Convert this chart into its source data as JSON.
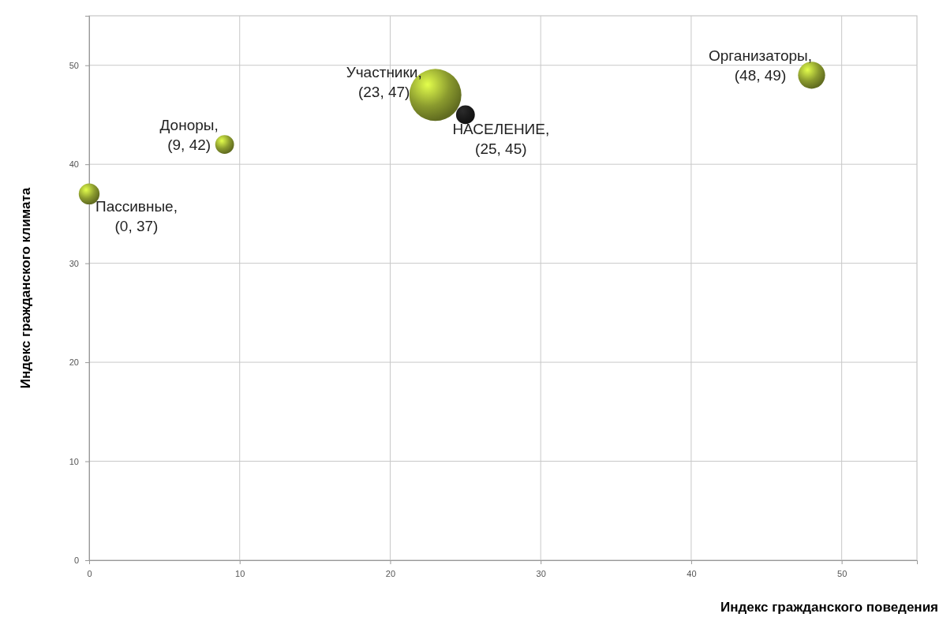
{
  "chart_data": {
    "type": "bubble",
    "xlabel": "Индекс гражданского поведения",
    "ylabel": "Индекс гражданского климата",
    "x": [
      0,
      9,
      23,
      25,
      48
    ],
    "values": [
      37,
      42,
      47,
      45,
      49
    ],
    "sizes": [
      0.16,
      0.13,
      1,
      0.13,
      0.27
    ],
    "colors": [
      "#8a9a2e",
      "#8a9a2e",
      "#8a9a2e",
      "#1a1a1a",
      "#8a9a2e"
    ],
    "value_labels": [
      "Пассивные,\n(0, 37)",
      "Доноры,\n(9, 42)",
      "Участники,\n(23, 47)",
      "НАСЕЛЕНИЕ,\n(25, 45)",
      "Организаторы,\n(48, 49)"
    ],
    "xlim": [
      0,
      55
    ],
    "ylim": [
      0,
      55
    ],
    "xticks": [
      0,
      10,
      20,
      30,
      40,
      50
    ],
    "yticks": [
      0,
      10,
      20,
      30,
      40,
      50
    ],
    "grid": true
  }
}
